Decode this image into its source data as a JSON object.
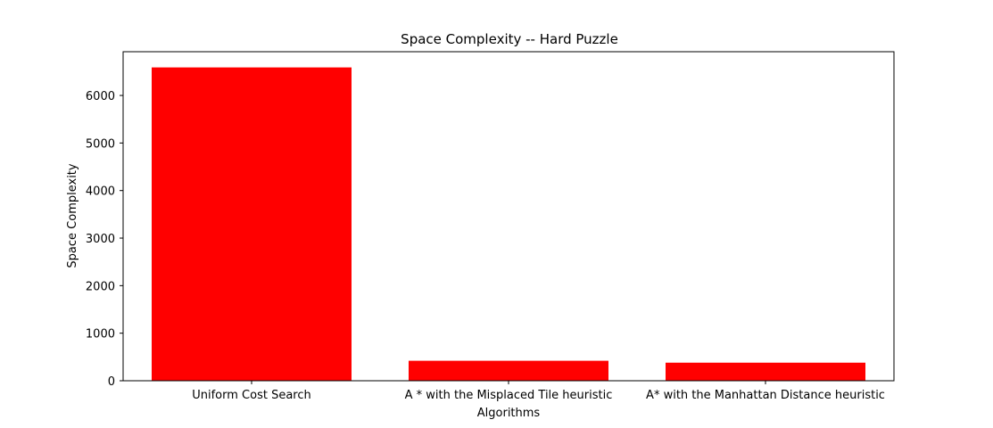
{
  "chart_data": {
    "type": "bar",
    "title": "Space Complexity -- Hard Puzzle",
    "xlabel": "Algorithms",
    "ylabel": "Space Complexity",
    "categories": [
      "Uniform Cost Search",
      "A * with the Misplaced Tile heuristic",
      "A* with the Manhattan Distance heuristic"
    ],
    "values": [
      6590,
      420,
      380
    ],
    "ylim": [
      0,
      6920
    ],
    "yticks": [
      0,
      1000,
      2000,
      3000,
      4000,
      5000,
      6000
    ],
    "bar_color": "#ff0000",
    "grid": false,
    "legend": "none"
  }
}
